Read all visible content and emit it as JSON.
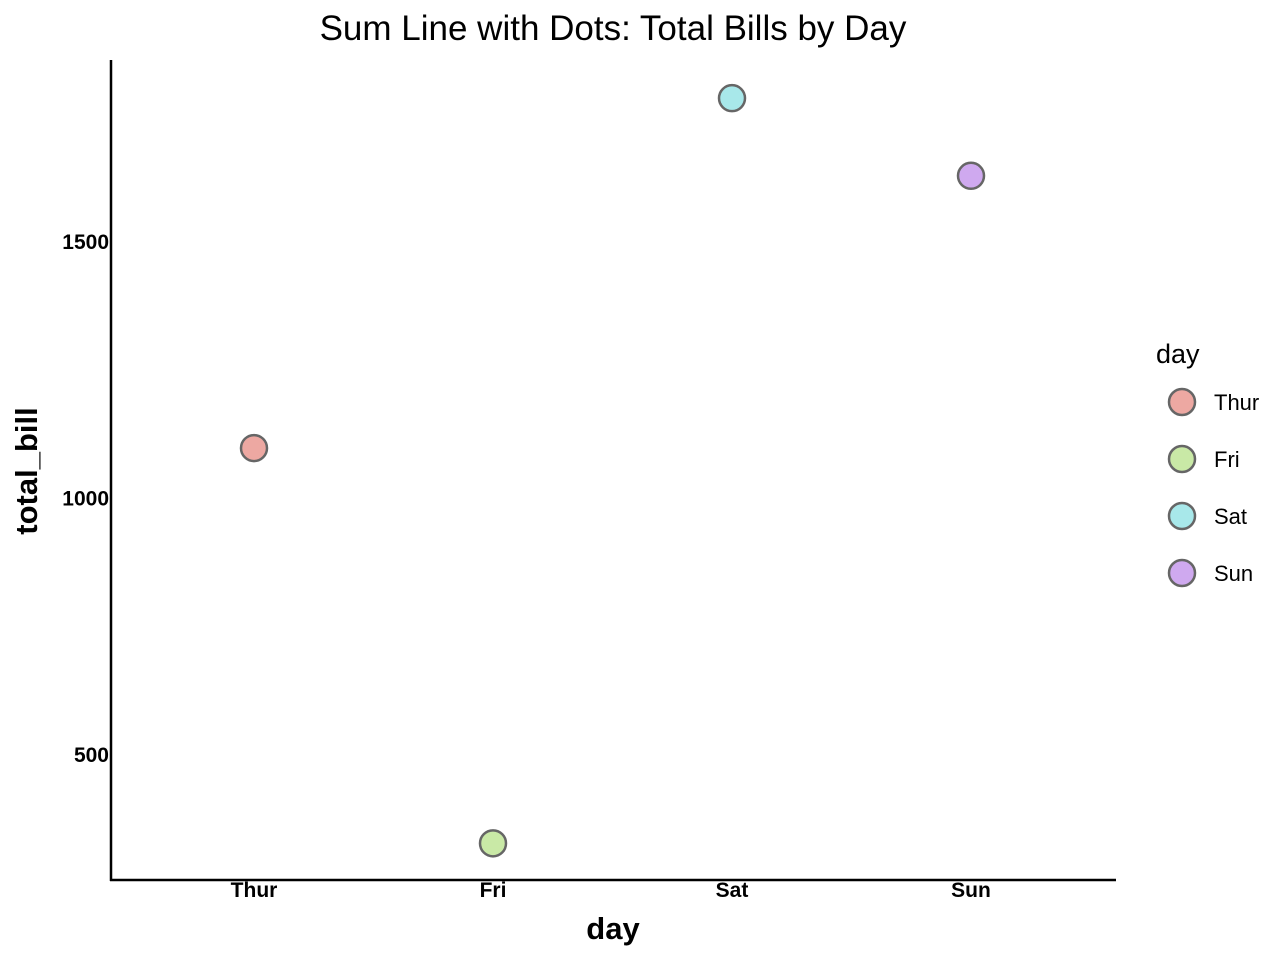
{
  "chart_data": {
    "type": "scatter",
    "title": "Sum Line with Dots: Total Bills by Day",
    "xlabel": "day",
    "ylabel": "total_bill",
    "categories": [
      "Thur",
      "Fri",
      "Sat",
      "Sun"
    ],
    "values": [
      1096.33,
      325.88,
      1778.4,
      1627.16
    ],
    "yticks": [
      500,
      1000,
      1500
    ],
    "ylim": [
      250,
      1850
    ],
    "grid": false,
    "legend": {
      "title": "day",
      "placement": "right",
      "entries": [
        "Thur",
        "Fri",
        "Sat",
        "Sun"
      ]
    },
    "colors": [
      "#eda8a2",
      "#c9e9a6",
      "#a8e8ea",
      "#cfa9ef"
    ],
    "marker_edge_color": "#666666"
  }
}
